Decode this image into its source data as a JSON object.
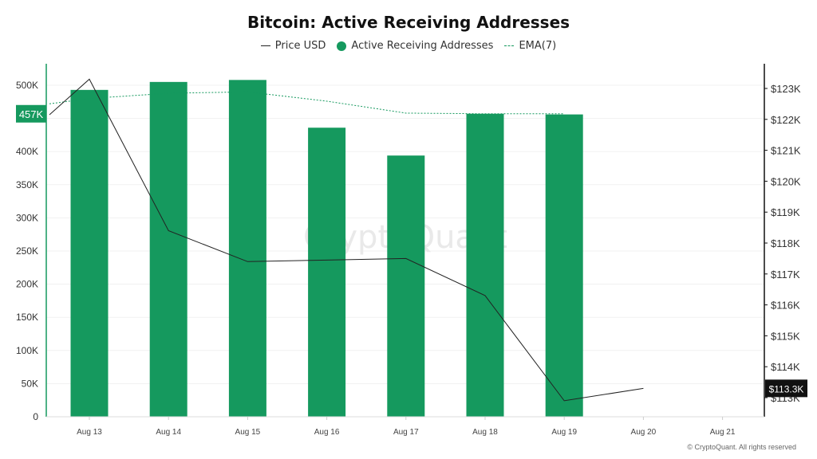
{
  "chart_data": {
    "type": "bar",
    "title": "Bitcoin: Active Receiving Addresses",
    "categories": [
      "Aug 13",
      "Aug 14",
      "Aug 15",
      "Aug 16",
      "Aug 17",
      "Aug 18",
      "Aug 19",
      "Aug 20",
      "Aug 21"
    ],
    "series": [
      {
        "name": "Active Receiving Addresses",
        "type": "bar",
        "axis": "left",
        "values": [
          493000,
          505000,
          508000,
          436000,
          394000,
          457000,
          456000,
          null,
          null
        ],
        "color": "#15995e"
      },
      {
        "name": "Price USD",
        "type": "line",
        "axis": "right",
        "values": [
          123300,
          118400,
          117400,
          117450,
          117500,
          116300,
          112900,
          113300,
          null
        ],
        "color": "#222222"
      },
      {
        "name": "EMA(7)",
        "type": "line",
        "style": "dotted",
        "axis": "right_left_scale",
        "values": [
          480000,
          488000,
          490000,
          476000,
          458000,
          457000,
          457000,
          null,
          null
        ],
        "color": "#15995e"
      }
    ],
    "pre_start_values": {
      "price": 122150,
      "ema": 472000
    },
    "left_axis": {
      "ylim": [
        0,
        500000
      ],
      "ticks": [
        "0",
        "50K",
        "100K",
        "150K",
        "200K",
        "250K",
        "300K",
        "350K",
        "400K",
        "450K",
        "500K"
      ],
      "marker_label": "457K",
      "marker_value": 457000
    },
    "right_axis": {
      "ylim": [
        113000,
        123000
      ],
      "ticks": [
        "$113K",
        "$114K",
        "$115K",
        "$116K",
        "$117K",
        "$118K",
        "$119K",
        "$120K",
        "$121K",
        "$122K",
        "$123K"
      ],
      "marker_label": "$113.3K",
      "marker_value": 113300
    },
    "grid": true,
    "legend_position": "top-center"
  },
  "legend": {
    "price_label": "Price USD",
    "addresses_label": "Active Receiving Addresses",
    "ema_label": "EMA(7)"
  },
  "watermark": "CryptoQuant",
  "copyright": "© CryptoQuant. All rights reserved"
}
